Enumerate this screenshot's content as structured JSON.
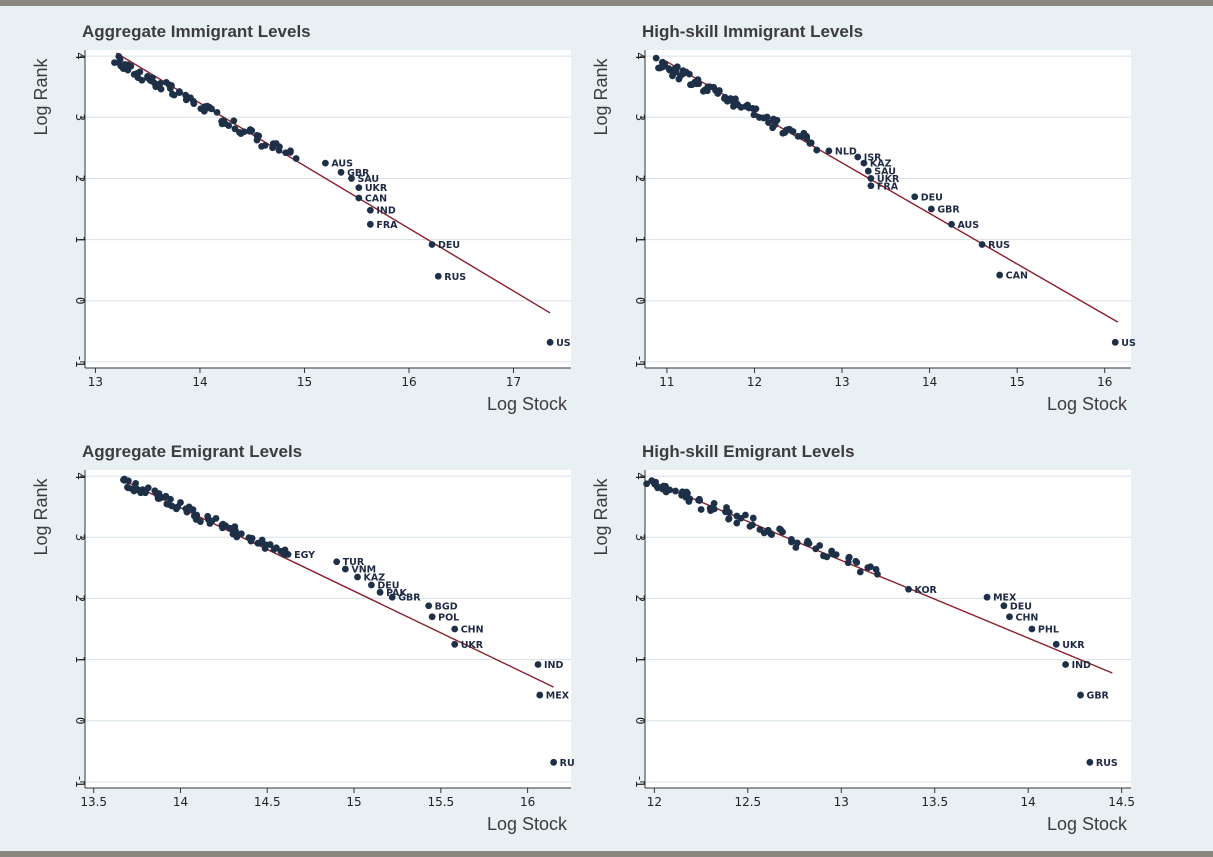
{
  "colors": {
    "background": "#e9f0f4",
    "plot_area": "#ffffff",
    "points": "#1e3048",
    "fit_line": "#8b1e2b",
    "grid": "#d6e0e6",
    "rule": "#8a8680"
  },
  "chart_data": [
    {
      "type": "scatter",
      "title": "Aggregate Immigrant Levels",
      "xlabel": "Log Stock",
      "ylabel": "Log Rank",
      "xlim": [
        12.9,
        17.55
      ],
      "ylim": [
        -1.1,
        4.1
      ],
      "xticks": [
        13,
        14,
        15,
        16,
        17
      ],
      "yticks": [
        -1,
        0,
        1,
        2,
        3,
        4
      ],
      "grid": true,
      "fit_line": {
        "x": [
          13.2,
          17.35
        ],
        "y": [
          4.05,
          -0.2
        ]
      },
      "cloud": {
        "x_start": 13.2,
        "x_end": 14.9,
        "y_start": 3.92,
        "y_end": 2.35,
        "count": 75,
        "spread": 0.09
      },
      "labeled_points": [
        {
          "label": "AUS",
          "x": 15.2,
          "y": 2.25
        },
        {
          "label": "GBR",
          "x": 15.35,
          "y": 2.1
        },
        {
          "label": "SAU",
          "x": 15.45,
          "y": 2.0
        },
        {
          "label": "UKR",
          "x": 15.52,
          "y": 1.85
        },
        {
          "label": "CAN",
          "x": 15.52,
          "y": 1.68
        },
        {
          "label": "IND",
          "x": 15.63,
          "y": 1.48
        },
        {
          "label": "FRA",
          "x": 15.63,
          "y": 1.25
        },
        {
          "label": "DEU",
          "x": 16.22,
          "y": 0.92
        },
        {
          "label": "RUS",
          "x": 16.28,
          "y": 0.4
        },
        {
          "label": "US",
          "x": 17.35,
          "y": -0.68
        }
      ]
    },
    {
      "type": "scatter",
      "title": "High-skill Immigrant Levels",
      "xlabel": "Log Stock",
      "ylabel": "Log Rank",
      "xlim": [
        10.75,
        16.3
      ],
      "ylim": [
        -1.1,
        4.1
      ],
      "xticks": [
        11,
        12,
        13,
        14,
        15,
        16
      ],
      "yticks": [
        -1,
        0,
        1,
        2,
        3,
        4
      ],
      "grid": true,
      "fit_line": {
        "x": [
          10.95,
          16.15
        ],
        "y": [
          3.95,
          -0.35
        ]
      },
      "cloud": {
        "x_start": 10.9,
        "x_end": 12.7,
        "y_start": 3.9,
        "y_end": 2.55,
        "count": 75,
        "spread": 0.1
      },
      "labeled_points": [
        {
          "label": "NLD",
          "x": 12.85,
          "y": 2.45
        },
        {
          "label": "ISR",
          "x": 13.18,
          "y": 2.35
        },
        {
          "label": "KAZ",
          "x": 13.25,
          "y": 2.25
        },
        {
          "label": "SAU",
          "x": 13.3,
          "y": 2.12
        },
        {
          "label": "UKR",
          "x": 13.33,
          "y": 2.0
        },
        {
          "label": "FRA",
          "x": 13.33,
          "y": 1.88
        },
        {
          "label": "DEU",
          "x": 13.83,
          "y": 1.7
        },
        {
          "label": "GBR",
          "x": 14.02,
          "y": 1.5
        },
        {
          "label": "AUS",
          "x": 14.25,
          "y": 1.25
        },
        {
          "label": "RUS",
          "x": 14.6,
          "y": 0.92
        },
        {
          "label": "CAN",
          "x": 14.8,
          "y": 0.42
        },
        {
          "label": "US",
          "x": 16.12,
          "y": -0.68
        }
      ]
    },
    {
      "type": "scatter",
      "title": "Aggregate Emigrant Levels",
      "xlabel": "Log Stock",
      "ylabel": "Log Rank",
      "xlim": [
        13.45,
        16.25
      ],
      "ylim": [
        -1.1,
        4.1
      ],
      "xticks": [
        13.5,
        14,
        14.5,
        15,
        15.5,
        16
      ],
      "yticks": [
        -1,
        0,
        1,
        2,
        3,
        4
      ],
      "grid": true,
      "fit_line": {
        "x": [
          13.68,
          16.15
        ],
        "y": [
          3.92,
          0.55
        ]
      },
      "cloud": {
        "x_start": 13.68,
        "x_end": 14.6,
        "y_start": 3.9,
        "y_end": 2.75,
        "count": 75,
        "spread": 0.08
      },
      "labeled_points": [
        {
          "label": "EGY",
          "x": 14.62,
          "y": 2.72
        },
        {
          "label": "TUR",
          "x": 14.9,
          "y": 2.6
        },
        {
          "label": "VNM",
          "x": 14.95,
          "y": 2.48
        },
        {
          "label": "KAZ",
          "x": 15.02,
          "y": 2.35
        },
        {
          "label": "DEU",
          "x": 15.1,
          "y": 2.22
        },
        {
          "label": "PAK",
          "x": 15.15,
          "y": 2.1
        },
        {
          "label": "GBR",
          "x": 15.22,
          "y": 2.02
        },
        {
          "label": "BGD",
          "x": 15.43,
          "y": 1.88
        },
        {
          "label": "POL",
          "x": 15.45,
          "y": 1.7
        },
        {
          "label": "CHN",
          "x": 15.58,
          "y": 1.5
        },
        {
          "label": "UKR",
          "x": 15.58,
          "y": 1.25
        },
        {
          "label": "IND",
          "x": 16.06,
          "y": 0.92
        },
        {
          "label": "MEX",
          "x": 16.07,
          "y": 0.42
        },
        {
          "label": "RU",
          "x": 16.15,
          "y": -0.68
        }
      ]
    },
    {
      "type": "scatter",
      "title": "High-skill Emigrant Levels",
      "xlabel": "Log Stock",
      "ylabel": "Log Rank",
      "xlim": [
        11.95,
        14.55
      ],
      "ylim": [
        -1.1,
        4.1
      ],
      "xticks": [
        12,
        12.5,
        13,
        13.5,
        14,
        14.5
      ],
      "yticks": [
        -1,
        0,
        1,
        2,
        3,
        4
      ],
      "grid": true,
      "fit_line": {
        "x": [
          11.98,
          14.45
        ],
        "y": [
          3.92,
          0.78
        ]
      },
      "cloud": {
        "x_start": 11.98,
        "x_end": 13.2,
        "y_start": 3.9,
        "y_end": 2.4,
        "count": 75,
        "spread": 0.08
      },
      "labeled_points": [
        {
          "label": "KOR",
          "x": 13.36,
          "y": 2.15
        },
        {
          "label": "MEX",
          "x": 13.78,
          "y": 2.02
        },
        {
          "label": "DEU",
          "x": 13.87,
          "y": 1.88
        },
        {
          "label": "CHN",
          "x": 13.9,
          "y": 1.7
        },
        {
          "label": "PHL",
          "x": 14.02,
          "y": 1.5
        },
        {
          "label": "UKR",
          "x": 14.15,
          "y": 1.25
        },
        {
          "label": "IND",
          "x": 14.2,
          "y": 0.92
        },
        {
          "label": "GBR",
          "x": 14.28,
          "y": 0.42
        },
        {
          "label": "RUS",
          "x": 14.33,
          "y": -0.68
        }
      ]
    }
  ]
}
